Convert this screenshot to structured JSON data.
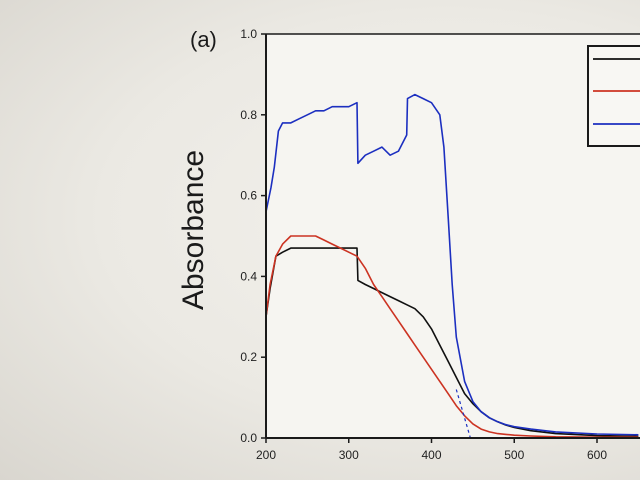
{
  "chart_data": {
    "type": "line",
    "panel_label": "(a)",
    "xlabel": "",
    "ylabel": "Absorbance",
    "xlim": [
      200,
      650
    ],
    "ylim": [
      0.0,
      1.0
    ],
    "x_ticks": [
      200,
      300,
      400,
      500,
      600
    ],
    "x_tick_labels": [
      "200",
      "300",
      "400",
      "500",
      "600"
    ],
    "y_ticks": [
      0.0,
      0.2,
      0.4,
      0.6,
      0.8,
      1.0
    ],
    "y_tick_labels": [
      "0.0",
      "0.2",
      "0.4",
      "0.6",
      "0.8",
      "1.0"
    ],
    "grid": false,
    "legend_position": "top-right",
    "series": [
      {
        "color": "#111111",
        "x": [
          200,
          205,
          212,
          220,
          230,
          240,
          250,
          260,
          270,
          280,
          290,
          300,
          310,
          311,
          320,
          330,
          340,
          350,
          360,
          370,
          380,
          390,
          400,
          410,
          420,
          430,
          440,
          450,
          460,
          470,
          480,
          490,
          500,
          520,
          550,
          600,
          650
        ],
        "y": [
          0.3,
          0.37,
          0.45,
          0.46,
          0.47,
          0.47,
          0.47,
          0.47,
          0.47,
          0.47,
          0.47,
          0.47,
          0.47,
          0.39,
          0.38,
          0.37,
          0.36,
          0.35,
          0.34,
          0.33,
          0.32,
          0.3,
          0.27,
          0.23,
          0.19,
          0.15,
          0.11,
          0.085,
          0.065,
          0.05,
          0.04,
          0.032,
          0.026,
          0.018,
          0.011,
          0.006,
          0.004
        ]
      },
      {
        "color": "#cc3322",
        "x": [
          200,
          205,
          212,
          220,
          230,
          240,
          250,
          260,
          270,
          280,
          290,
          300,
          310,
          320,
          330,
          340,
          350,
          360,
          370,
          380,
          390,
          400,
          410,
          420,
          430,
          440,
          450,
          460,
          470,
          480,
          490,
          500,
          520,
          550,
          600,
          650
        ],
        "y": [
          0.3,
          0.38,
          0.45,
          0.48,
          0.5,
          0.5,
          0.5,
          0.5,
          0.49,
          0.48,
          0.47,
          0.46,
          0.45,
          0.42,
          0.38,
          0.35,
          0.32,
          0.29,
          0.26,
          0.23,
          0.2,
          0.17,
          0.14,
          0.11,
          0.08,
          0.055,
          0.035,
          0.022,
          0.015,
          0.011,
          0.009,
          0.007,
          0.005,
          0.003,
          0.002,
          0.002
        ]
      },
      {
        "color": "#1c2fc0",
        "x": [
          200,
          203,
          206,
          210,
          215,
          220,
          230,
          240,
          250,
          260,
          270,
          280,
          290,
          300,
          310,
          311,
          320,
          330,
          340,
          350,
          360,
          370,
          371,
          380,
          390,
          400,
          410,
          415,
          420,
          425,
          430,
          440,
          450,
          460,
          470,
          480,
          490,
          500,
          520,
          550,
          600,
          650
        ],
        "y": [
          0.56,
          0.59,
          0.62,
          0.67,
          0.76,
          0.78,
          0.78,
          0.79,
          0.8,
          0.81,
          0.81,
          0.82,
          0.82,
          0.82,
          0.83,
          0.68,
          0.7,
          0.71,
          0.72,
          0.7,
          0.71,
          0.75,
          0.84,
          0.85,
          0.84,
          0.83,
          0.8,
          0.72,
          0.55,
          0.38,
          0.25,
          0.14,
          0.09,
          0.065,
          0.05,
          0.04,
          0.033,
          0.028,
          0.022,
          0.015,
          0.01,
          0.008
        ]
      },
      {
        "color": "#1c2fc0",
        "dash": "3 3",
        "x": [
          430,
          447
        ],
        "y": [
          0.12,
          0.0
        ]
      }
    ]
  },
  "colors": {
    "axis": "#1a1a1a",
    "background": "#eeece6"
  }
}
